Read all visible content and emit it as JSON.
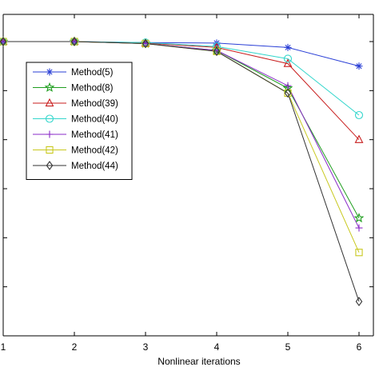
{
  "chart_data": {
    "type": "line",
    "title": "",
    "xlabel": "Nonlinear iterations",
    "ylabel": "",
    "x": [
      1,
      2,
      3,
      4,
      5,
      6
    ],
    "xlim": [
      1,
      6
    ],
    "ylim": [
      -6,
      0
    ],
    "ytick_values": [
      -5,
      -4,
      -3,
      -2,
      -1,
      0
    ],
    "grid": false,
    "legend_position": "left",
    "series": [
      {
        "name": "Method(5)",
        "color": "#2a3fd6",
        "marker": "asterisk",
        "values": [
          0,
          0,
          -0.02,
          -0.03,
          -0.12,
          -0.5
        ]
      },
      {
        "name": "Method(8)",
        "color": "#1f9e1f",
        "marker": "star",
        "values": [
          0,
          0,
          -0.04,
          -0.18,
          -0.95,
          -3.6
        ]
      },
      {
        "name": "Method(39)",
        "color": "#c81e1e",
        "marker": "triangle",
        "values": [
          0,
          0,
          -0.03,
          -0.12,
          -0.45,
          -2.0
        ]
      },
      {
        "name": "Method(40)",
        "color": "#33d6cc",
        "marker": "circle",
        "values": [
          0,
          0,
          -0.02,
          -0.1,
          -0.35,
          -1.5
        ]
      },
      {
        "name": "Method(41)",
        "color": "#8a2bc8",
        "marker": "plus",
        "values": [
          0,
          0,
          -0.04,
          -0.18,
          -0.9,
          -3.8
        ]
      },
      {
        "name": "Method(42)",
        "color": "#c8c81e",
        "marker": "square",
        "values": [
          0,
          0,
          -0.04,
          -0.2,
          -1.05,
          -4.3
        ]
      },
      {
        "name": "Method(44)",
        "color": "#333333",
        "marker": "diamond",
        "values": [
          0,
          0,
          -0.04,
          -0.2,
          -1.05,
          -5.3
        ]
      }
    ]
  }
}
